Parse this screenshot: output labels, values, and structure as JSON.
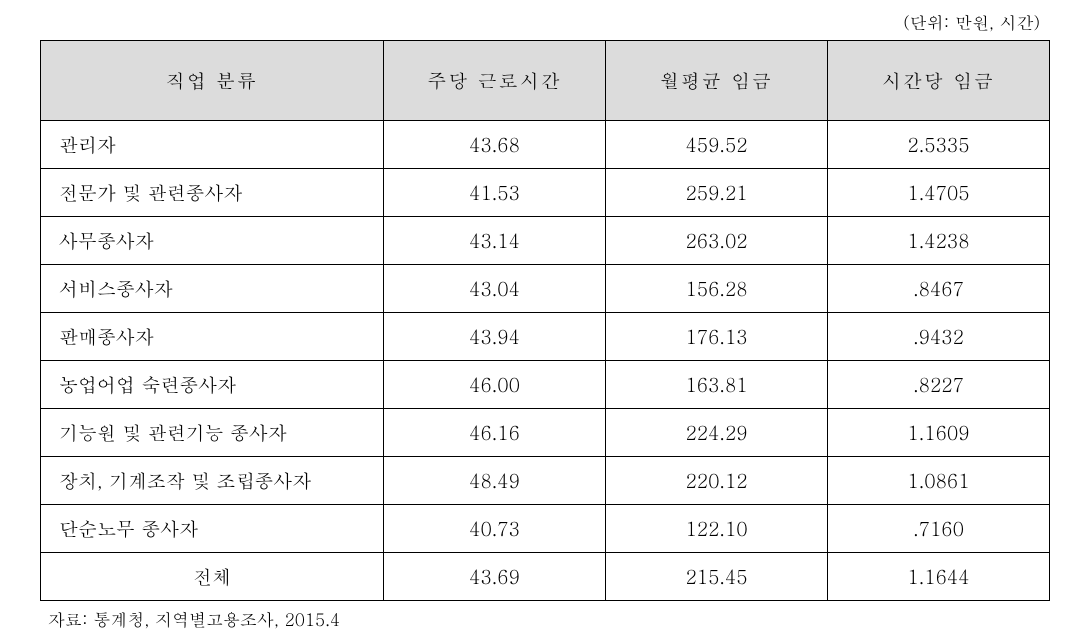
{
  "unit_label": "(단위: 만원, 시간)",
  "columns": {
    "category": "직업 분류",
    "weekly_hours": "주당 근로시간",
    "monthly_wage": "월평균 임금",
    "hourly_wage": "시간당 임금"
  },
  "rows": [
    {
      "label": "관리자",
      "center": false,
      "weekly_hours": "43.68",
      "monthly_wage": "459.52",
      "hourly_wage": "2.5335"
    },
    {
      "label": "전문가 및 관련종사자",
      "center": false,
      "weekly_hours": "41.53",
      "monthly_wage": "259.21",
      "hourly_wage": "1.4705"
    },
    {
      "label": "사무종사자",
      "center": false,
      "weekly_hours": "43.14",
      "monthly_wage": "263.02",
      "hourly_wage": "1.4238"
    },
    {
      "label": "서비스종사자",
      "center": false,
      "weekly_hours": "43.04",
      "monthly_wage": "156.28",
      "hourly_wage": ".8467"
    },
    {
      "label": "판매종사자",
      "center": false,
      "weekly_hours": "43.94",
      "monthly_wage": "176.13",
      "hourly_wage": ".9432"
    },
    {
      "label": "농업어업 숙련종사자",
      "center": false,
      "weekly_hours": "46.00",
      "monthly_wage": "163.81",
      "hourly_wage": ".8227"
    },
    {
      "label": "기능원 및 관련기능 종사자",
      "center": false,
      "weekly_hours": "46.16",
      "monthly_wage": "224.29",
      "hourly_wage": "1.1609"
    },
    {
      "label": "장치, 기계조작 및 조립종사자",
      "center": false,
      "weekly_hours": "48.49",
      "monthly_wage": "220.12",
      "hourly_wage": "1.0861"
    },
    {
      "label": "단순노무 종사자",
      "center": false,
      "weekly_hours": "40.73",
      "monthly_wage": "122.10",
      "hourly_wage": ".7160"
    },
    {
      "label": "전체",
      "center": true,
      "weekly_hours": "43.69",
      "monthly_wage": "215.45",
      "hourly_wage": "1.1644"
    }
  ],
  "source_note": "자료: 통계청, 지역별고용조사, 2015.4",
  "colors": {
    "header_bg": "#dcdcdc",
    "border": "#000000",
    "text": "#000000",
    "background": "#ffffff"
  },
  "font_sizes": {
    "unit_label": 17,
    "cell": 19,
    "source": 17
  }
}
